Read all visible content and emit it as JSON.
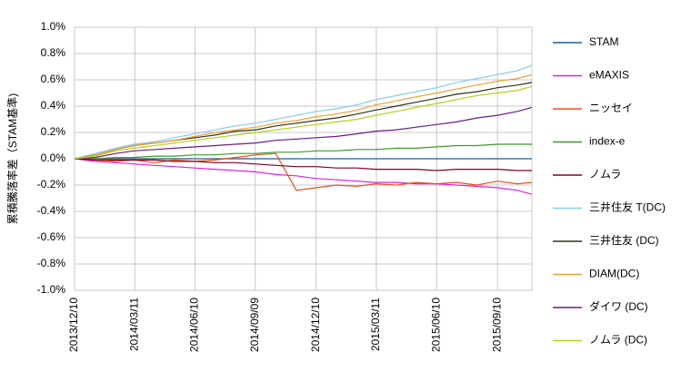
{
  "chart_data": {
    "type": "line",
    "y_axis_label": "累積騰落率差（STAM基準)",
    "x": [
      "2013/12/10",
      "2014/01/10",
      "2014/02/10",
      "2014/03/10",
      "2014/04/10",
      "2014/05/10",
      "2014/06/10",
      "2014/07/10",
      "2014/08/10",
      "2014/09/10",
      "2014/10/10",
      "2014/11/10",
      "2014/12/10",
      "2015/01/10",
      "2015/02/10",
      "2015/03/10",
      "2015/04/10",
      "2015/05/10",
      "2015/06/10",
      "2015/07/10",
      "2015/08/10",
      "2015/09/10",
      "2015/10/10",
      "2015/11/01"
    ],
    "xlim": [
      "2013/12/10",
      "2015/11/01"
    ],
    "xticks": [
      "2013/12/10",
      "2014/03/11",
      "2014/06/10",
      "2014/09/09",
      "2014/12/10",
      "2015/03/11",
      "2015/06/10",
      "2015/09/10"
    ],
    "ylim": [
      -1.0,
      1.0
    ],
    "yticks": [
      {
        "value": 1.0,
        "label": "1.0%"
      },
      {
        "value": 0.8,
        "label": "0.8%"
      },
      {
        "value": 0.6,
        "label": "0.6%"
      },
      {
        "value": 0.4,
        "label": "0.4%"
      },
      {
        "value": 0.2,
        "label": "0.2%"
      },
      {
        "value": 0.0,
        "label": "0.0%"
      },
      {
        "value": -0.2,
        "label": "-0.2%"
      },
      {
        "value": -0.4,
        "label": "-0.4%"
      },
      {
        "value": -0.6,
        "label": "-0.6%"
      },
      {
        "value": -0.8,
        "label": "-0.8%"
      },
      {
        "value": -1.0,
        "label": "-1.0%"
      }
    ],
    "grid": true,
    "legend": "right",
    "series": [
      {
        "name": "STAM",
        "color": "#1f5f8f",
        "values": [
          0,
          0,
          0,
          0,
          0,
          0,
          0,
          0,
          0,
          0,
          0,
          0,
          0,
          0,
          0,
          0,
          0,
          0,
          0,
          0,
          0,
          0,
          0,
          0
        ]
      },
      {
        "name": "eMAXIS",
        "color": "#e01ee0",
        "values": [
          0,
          -0.02,
          -0.03,
          -0.04,
          -0.05,
          -0.06,
          -0.07,
          -0.08,
          -0.09,
          -0.1,
          -0.12,
          -0.13,
          -0.15,
          -0.16,
          -0.17,
          -0.18,
          -0.18,
          -0.19,
          -0.19,
          -0.2,
          -0.21,
          -0.22,
          -0.24,
          -0.27
        ]
      },
      {
        "name": "ニッセイ",
        "color": "#e8501a",
        "values": [
          0,
          -0.01,
          -0.02,
          -0.01,
          -0.03,
          -0.01,
          -0.02,
          -0.01,
          0.01,
          0.03,
          0.04,
          -0.24,
          -0.22,
          -0.2,
          -0.21,
          -0.19,
          -0.2,
          -0.18,
          -0.19,
          -0.18,
          -0.2,
          -0.17,
          -0.19,
          -0.18
        ]
      },
      {
        "name": "index-e",
        "color": "#3a9a2a",
        "values": [
          0,
          0,
          0.01,
          0.01,
          0.02,
          0.02,
          0.03,
          0.03,
          0.04,
          0.04,
          0.05,
          0.05,
          0.06,
          0.06,
          0.07,
          0.07,
          0.08,
          0.08,
          0.09,
          0.1,
          0.1,
          0.11,
          0.11,
          0.11
        ]
      },
      {
        "name": "ノムラ",
        "color": "#800020",
        "values": [
          0,
          -0.01,
          -0.01,
          -0.01,
          -0.01,
          -0.02,
          -0.02,
          -0.03,
          -0.03,
          -0.04,
          -0.05,
          -0.06,
          -0.06,
          -0.07,
          -0.07,
          -0.08,
          -0.08,
          -0.08,
          -0.09,
          -0.08,
          -0.08,
          -0.08,
          -0.09,
          -0.09
        ]
      },
      {
        "name": "三井住友 T(DC)",
        "color": "#88ccf0",
        "values": [
          0,
          0.04,
          0.08,
          0.11,
          0.13,
          0.16,
          0.19,
          0.22,
          0.25,
          0.27,
          0.3,
          0.33,
          0.36,
          0.38,
          0.41,
          0.45,
          0.48,
          0.51,
          0.54,
          0.58,
          0.61,
          0.64,
          0.67,
          0.71
        ]
      },
      {
        "name": "三井住友 (DC)",
        "color": "#303018",
        "values": [
          0,
          0.03,
          0.07,
          0.1,
          0.12,
          0.14,
          0.16,
          0.18,
          0.21,
          0.22,
          0.25,
          0.27,
          0.29,
          0.31,
          0.34,
          0.37,
          0.4,
          0.43,
          0.46,
          0.49,
          0.51,
          0.54,
          0.56,
          0.58
        ]
      },
      {
        "name": "DIAM(DC)",
        "color": "#f0a030",
        "values": [
          0,
          0.03,
          0.07,
          0.1,
          0.12,
          0.14,
          0.17,
          0.2,
          0.22,
          0.24,
          0.27,
          0.29,
          0.32,
          0.34,
          0.37,
          0.41,
          0.44,
          0.47,
          0.5,
          0.53,
          0.56,
          0.59,
          0.61,
          0.64
        ]
      },
      {
        "name": "ダイワ (DC)",
        "color": "#6a1a8a",
        "values": [
          0,
          0.01,
          0.04,
          0.06,
          0.07,
          0.08,
          0.09,
          0.1,
          0.11,
          0.12,
          0.14,
          0.15,
          0.16,
          0.17,
          0.19,
          0.21,
          0.22,
          0.24,
          0.26,
          0.28,
          0.31,
          0.33,
          0.36,
          0.39
        ]
      },
      {
        "name": "ノムラ (DC)",
        "color": "#b8d020",
        "values": [
          0,
          0.02,
          0.06,
          0.08,
          0.1,
          0.12,
          0.14,
          0.16,
          0.18,
          0.2,
          0.22,
          0.24,
          0.26,
          0.28,
          0.3,
          0.33,
          0.36,
          0.39,
          0.42,
          0.45,
          0.48,
          0.5,
          0.52,
          0.55
        ]
      }
    ]
  }
}
